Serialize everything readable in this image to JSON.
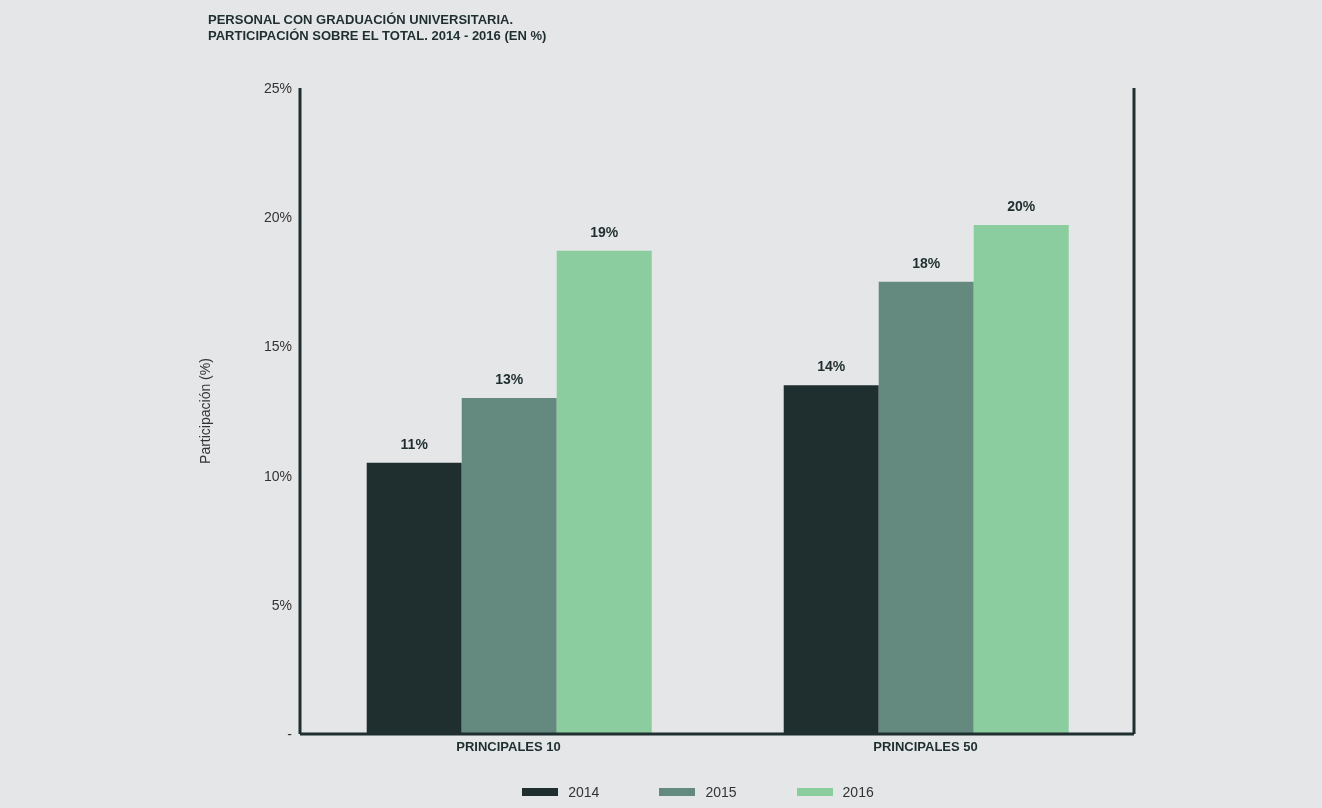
{
  "chart_data": {
    "type": "bar",
    "title": "PERSONAL CON GRADUACIÓN UNIVERSITARIA.\nPARTICIPACIÓN SOBRE EL TOTAL. 2014 - 2016 (EN %)",
    "ylabel": "Participación (%)",
    "categories": [
      "PRINCIPALES 10",
      "PRINCIPALES 50"
    ],
    "series": [
      {
        "name": "2014",
        "color": "#1f2e2e",
        "values": [
          10.5,
          13.5
        ],
        "value_labels": [
          "11%",
          "14%"
        ]
      },
      {
        "name": "2015",
        "color": "#648a80",
        "values": [
          13,
          17.5
        ],
        "value_labels": [
          "13%",
          "18%"
        ]
      },
      {
        "name": "2016",
        "color": "#8ccda0",
        "values": [
          18.7,
          19.7
        ],
        "value_labels": [
          "19%",
          "20%"
        ]
      }
    ],
    "ylim": [
      0,
      25
    ],
    "yticks": [
      {
        "value": 0,
        "label": "-"
      },
      {
        "value": 5,
        "label": "5%"
      },
      {
        "value": 10,
        "label": "10%"
      },
      {
        "value": 15,
        "label": "15%"
      },
      {
        "value": 20,
        "label": "20%"
      },
      {
        "value": 25,
        "label": "25%"
      }
    ],
    "grid": false,
    "legend": "bottom"
  }
}
